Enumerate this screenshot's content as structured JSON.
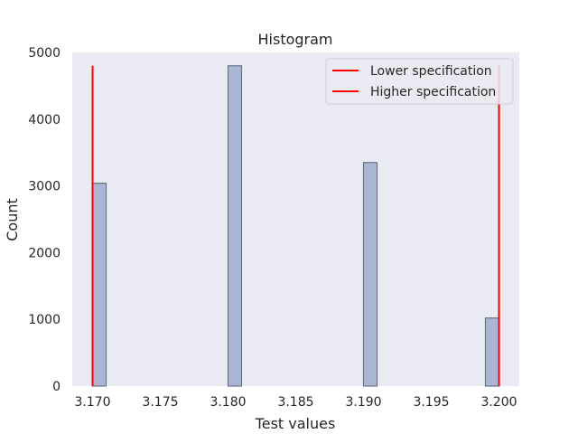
{
  "chart_data": {
    "type": "bar",
    "title": "Histogram",
    "xlabel": "Test values",
    "ylabel": "Count",
    "xlim": [
      3.1685,
      3.2015
    ],
    "ylim": [
      0,
      5000
    ],
    "xticks": [
      "3.170",
      "3.175",
      "3.180",
      "3.185",
      "3.190",
      "3.195",
      "3.200"
    ],
    "yticks": [
      "0",
      "1000",
      "2000",
      "3000",
      "4000",
      "5000"
    ],
    "bins": [
      {
        "x0": 3.17,
        "x1": 3.171,
        "count": 3040
      },
      {
        "x0": 3.18,
        "x1": 3.181,
        "count": 4800
      },
      {
        "x0": 3.19,
        "x1": 3.191,
        "count": 3350
      },
      {
        "x0": 3.199,
        "x1": 3.2,
        "count": 1020
      }
    ],
    "reference_lines": [
      {
        "name": "Lower specification",
        "x": 3.17,
        "y_top": 4800
      },
      {
        "name": "Higher specification",
        "x": 3.2,
        "y_top": 4800
      }
    ],
    "grid": false,
    "legend_position": "upper right",
    "colors": {
      "plot_background": "#eaeaf2",
      "bar_fill": "#aab7d4",
      "bar_edge": "#6b7287",
      "spec_line": "#ff0000"
    }
  }
}
